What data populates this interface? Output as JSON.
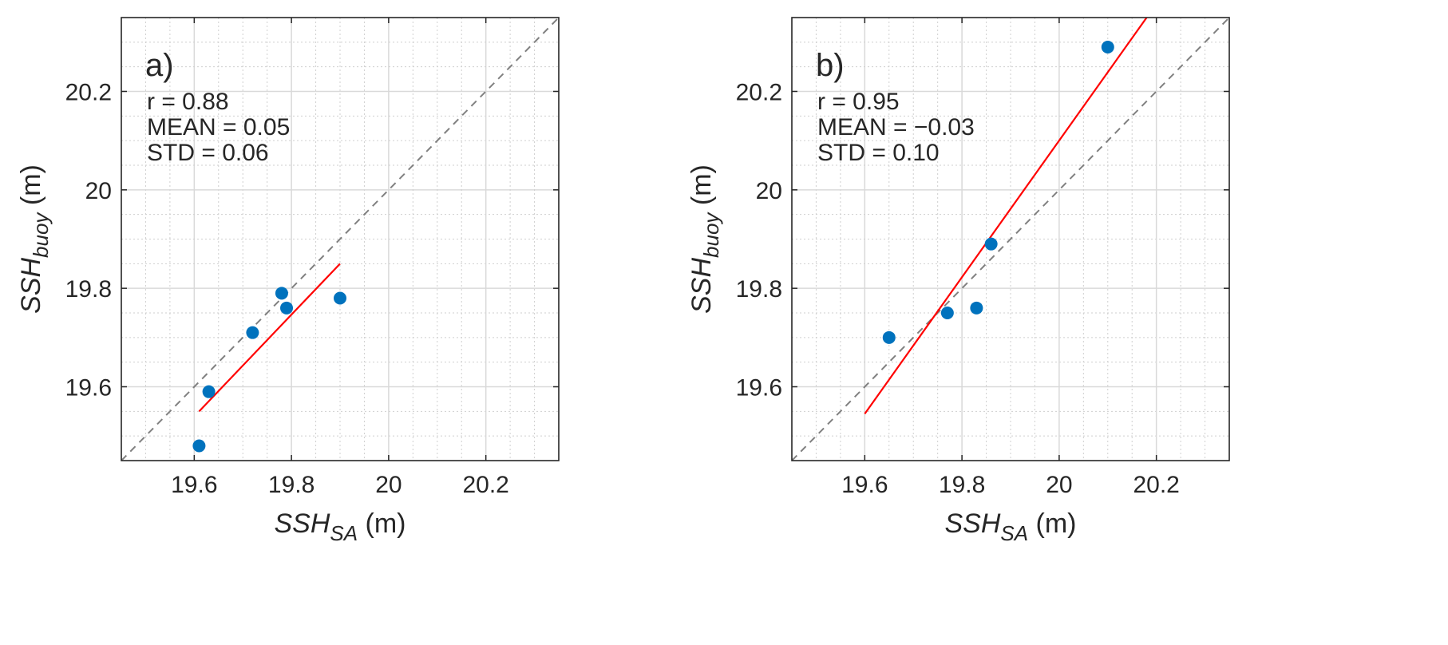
{
  "chart_data": [
    {
      "type": "scatter",
      "panel_label": "a)",
      "stats": [
        "r = 0.88",
        "MEAN = 0.05",
        "STD = 0.06"
      ],
      "xlabel": {
        "main": "SSH",
        "sub": "SA",
        "unit": " (m)"
      },
      "ylabel": {
        "main": "SSH",
        "sub": "buoy",
        "unit": " (m)"
      },
      "xlim": [
        19.45,
        20.35
      ],
      "ylim": [
        19.45,
        20.35
      ],
      "major_ticks": [
        19.6,
        19.8,
        20.0,
        20.2
      ],
      "tick_labels": [
        "19.6",
        "19.8",
        "20",
        "20.2"
      ],
      "minor_step": 0.05,
      "grid": true,
      "points": [
        {
          "x": 19.61,
          "y": 19.48
        },
        {
          "x": 19.63,
          "y": 19.59
        },
        {
          "x": 19.72,
          "y": 19.71
        },
        {
          "x": 19.78,
          "y": 19.79
        },
        {
          "x": 19.79,
          "y": 19.76
        },
        {
          "x": 19.9,
          "y": 19.78
        }
      ],
      "fit_line": {
        "x": [
          19.61,
          19.9
        ],
        "y": [
          19.55,
          19.85
        ]
      },
      "identity_line": true,
      "colors": {
        "points": "#0072BD",
        "fit": "#FF0000",
        "identity": "#808080"
      }
    },
    {
      "type": "scatter",
      "panel_label": "b)",
      "stats": [
        "r = 0.95",
        "MEAN = −0.03",
        "STD = 0.10"
      ],
      "xlabel": {
        "main": "SSH",
        "sub": "SA",
        "unit": " (m)"
      },
      "ylabel": {
        "main": "SSH",
        "sub": "buoy",
        "unit": " (m)"
      },
      "xlim": [
        19.45,
        20.35
      ],
      "ylim": [
        19.45,
        20.35
      ],
      "major_ticks": [
        19.6,
        19.8,
        20.0,
        20.2
      ],
      "tick_labels": [
        "19.6",
        "19.8",
        "20",
        "20.2"
      ],
      "minor_step": 0.05,
      "grid": true,
      "points": [
        {
          "x": 19.65,
          "y": 19.7
        },
        {
          "x": 19.77,
          "y": 19.75
        },
        {
          "x": 19.83,
          "y": 19.76
        },
        {
          "x": 19.86,
          "y": 19.89
        },
        {
          "x": 20.1,
          "y": 20.29
        }
      ],
      "fit_line": {
        "x": [
          19.6,
          20.18
        ],
        "y": [
          19.545,
          20.35
        ]
      },
      "identity_line": true,
      "colors": {
        "points": "#0072BD",
        "fit": "#FF0000",
        "identity": "#808080"
      }
    }
  ]
}
